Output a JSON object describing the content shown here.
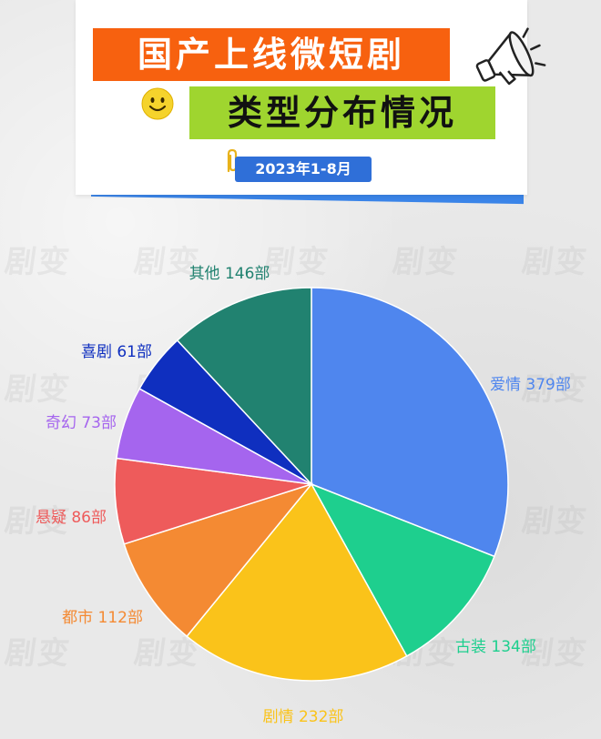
{
  "header": {
    "title_line1": "国产上线微短剧",
    "title_line2": "类型分布情况",
    "date_range": "2023年1-8月"
  },
  "watermark": "剧变",
  "icons": {
    "emoji": "smiley-face-icon",
    "decoration": "megaphone-icon",
    "clip": "paperclip-icon"
  },
  "chart_data": {
    "type": "pie",
    "title": "国产上线微短剧类型分布情况",
    "subtitle": "2023年1-8月",
    "unit": "部",
    "slices": [
      {
        "label": "爱情",
        "value": 379,
        "text": "爱情 379部",
        "color": "#4f86ee"
      },
      {
        "label": "古装",
        "value": 134,
        "text": "古装 134部",
        "color": "#1ecf8e"
      },
      {
        "label": "剧情",
        "value": 232,
        "text": "剧情 232部",
        "color": "#fac31a"
      },
      {
        "label": "都市",
        "value": 112,
        "text": "都市 112部",
        "color": "#f48a33"
      },
      {
        "label": "悬疑",
        "value": 86,
        "text": "悬疑 86部",
        "color": "#ee5b5b"
      },
      {
        "label": "奇幻",
        "value": 73,
        "text": "奇幻 73部",
        "color": "#a565ee"
      },
      {
        "label": "喜剧",
        "value": 61,
        "text": "喜剧  61部",
        "color": "#0f2fbf"
      },
      {
        "label": "其他",
        "value": 146,
        "text": "其他 146部",
        "color": "#218270"
      }
    ],
    "label_colors": [
      "#4f86ee",
      "#1ecf8e",
      "#fac31a",
      "#f48a33",
      "#ee5b5b",
      "#a565ee",
      "#0f2fbf",
      "#218270"
    ]
  }
}
